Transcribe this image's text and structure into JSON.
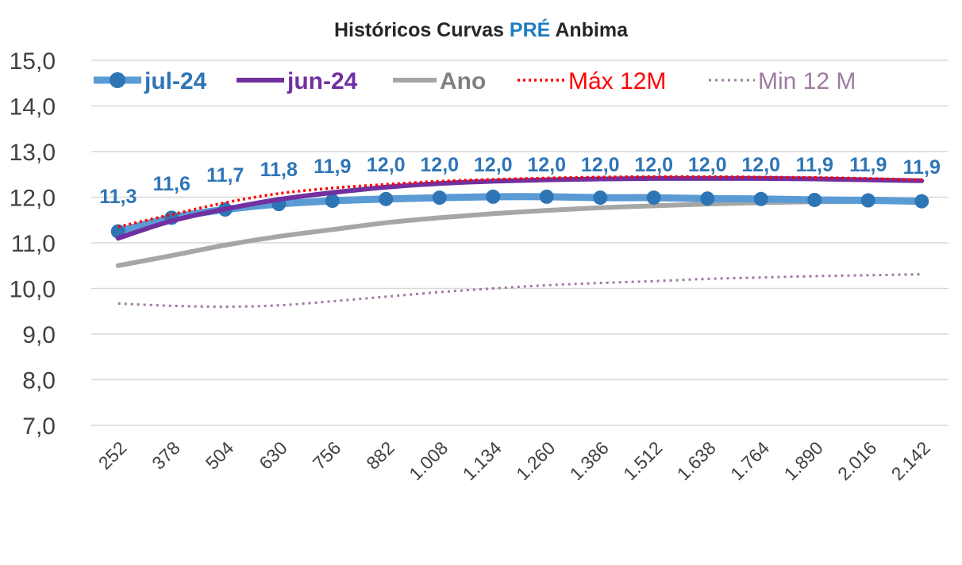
{
  "chart_data": {
    "type": "line",
    "title_parts": [
      "Históricos Curvas ",
      "PRÉ",
      " Anbima"
    ],
    "categories": [
      "252",
      "378",
      "504",
      "630",
      "756",
      "882",
      "1.008",
      "1.134",
      "1.260",
      "1.386",
      "1.512",
      "1.638",
      "1.764",
      "1.890",
      "2.016",
      "2.142"
    ],
    "ylim": [
      7.0,
      15.0
    ],
    "yticks": [
      "7,0",
      "8,0",
      "9,0",
      "10,0",
      "11,0",
      "12,0",
      "13,0",
      "14,0",
      "15,0"
    ],
    "grid": true,
    "legend_position": "top",
    "series": [
      {
        "name": "jul-24",
        "color": "#5b9bd5",
        "marker_color": "#2e75b6",
        "style": "line-markers",
        "values": [
          11.25,
          11.55,
          11.73,
          11.85,
          11.92,
          11.96,
          11.99,
          12.01,
          12.01,
          11.99,
          11.99,
          11.97,
          11.96,
          11.94,
          11.93,
          11.91
        ],
        "data_labels": [
          "11,3",
          "11,6",
          "11,7",
          "11,8",
          "11,9",
          "12,0",
          "12,0",
          "12,0",
          "12,0",
          "12,0",
          "12,0",
          "12,0",
          "12,0",
          "11,9",
          "11,9",
          "11,9"
        ]
      },
      {
        "name": "jun-24",
        "color": "#7030a0",
        "style": "thick",
        "values": [
          11.1,
          11.48,
          11.74,
          11.95,
          12.1,
          12.22,
          12.3,
          12.35,
          12.38,
          12.4,
          12.41,
          12.41,
          12.41,
          12.4,
          12.38,
          12.36
        ]
      },
      {
        "name": "Ano",
        "color": "#a6a6a6",
        "style": "thick",
        "values": [
          10.5,
          10.72,
          10.95,
          11.14,
          11.29,
          11.44,
          11.55,
          11.64,
          11.71,
          11.77,
          11.81,
          11.85,
          11.88,
          11.9,
          11.91,
          11.92
        ]
      },
      {
        "name": "Máx 12M",
        "color": "#ff0000",
        "style": "dotted",
        "values": [
          11.35,
          11.62,
          11.88,
          12.08,
          12.2,
          12.28,
          12.35,
          12.39,
          12.42,
          12.44,
          12.45,
          12.45,
          12.44,
          12.43,
          12.41,
          12.38
        ]
      },
      {
        "name": "Min 12 M",
        "color": "#9e7ba0",
        "style": "dotted-thin",
        "values": [
          9.67,
          9.62,
          9.6,
          9.63,
          9.72,
          9.82,
          9.92,
          10.0,
          10.07,
          10.12,
          10.16,
          10.21,
          10.24,
          10.27,
          10.29,
          10.31
        ]
      }
    ]
  }
}
